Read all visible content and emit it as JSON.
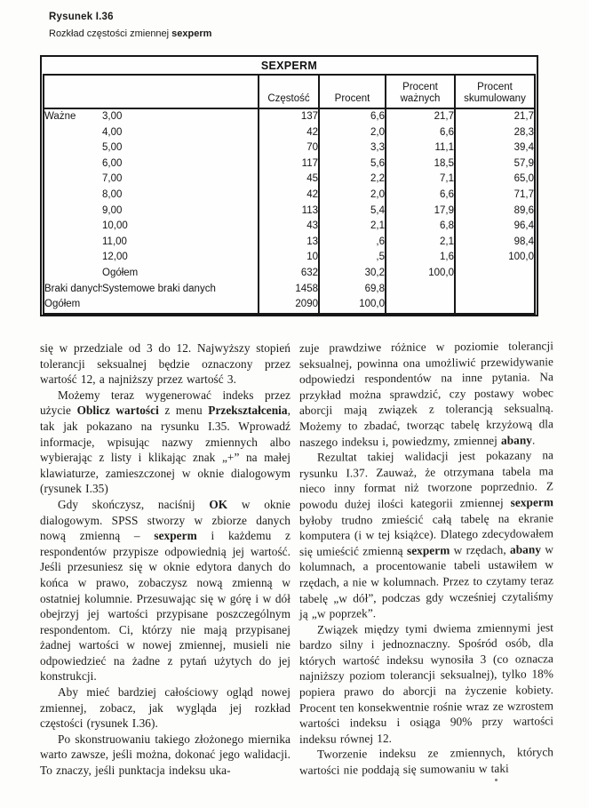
{
  "figure": {
    "label": "Rysunek I.36",
    "caption_text": "Rozkład częstości zmiennej ",
    "caption_var": "sexperm"
  },
  "table": {
    "title": "SEXPERM",
    "col_headers": [
      "Częstość",
      "Procent",
      "Procent\nważnych",
      "Procent\nskumulowany"
    ],
    "rows": [
      [
        "Ważne",
        "3,00",
        "137",
        "6,6",
        "21,7",
        "21,7"
      ],
      [
        "",
        "4,00",
        "42",
        "2,0",
        "6,6",
        "28,3"
      ],
      [
        "",
        "5,00",
        "70",
        "3,3",
        "11,1",
        "39,4"
      ],
      [
        "",
        "6,00",
        "117",
        "5,6",
        "18,5",
        "57,9"
      ],
      [
        "",
        "7,00",
        "45",
        "2,2",
        "7,1",
        "65,0"
      ],
      [
        "",
        "8,00",
        "42",
        "2,0",
        "6,6",
        "71,7"
      ],
      [
        "",
        "9,00",
        "113",
        "5,4",
        "17,9",
        "89,6"
      ],
      [
        "",
        "10,00",
        "43",
        "2,1",
        "6,8",
        "96,4"
      ],
      [
        "",
        "11,00",
        "13",
        ",6",
        "2,1",
        "98,4"
      ],
      [
        "",
        "12,00",
        "10",
        ",5",
        "1,6",
        "100,0"
      ],
      [
        "",
        "Ogółem",
        "632",
        "30,2",
        "100,0",
        ""
      ],
      [
        "Braki danych",
        "Systemowe braki danych",
        "1458",
        "69,8",
        "",
        ""
      ],
      [
        "Ogółem",
        "",
        "2090",
        "100,0",
        "",
        ""
      ]
    ]
  },
  "left_column": {
    "paragraphs": [
      {
        "indent": false,
        "runs": [
          {
            "t": "się w przedziale od 3 do 12. Najwyższy stopień tolerancji seksualnej będzie oznaczony przez wartość 12, a najniższy przez wartość 3."
          }
        ]
      },
      {
        "indent": true,
        "runs": [
          {
            "t": "Możemy teraz wygenerować indeks przez użycie "
          },
          {
            "t": "Oblicz wartości",
            "b": true
          },
          {
            "t": " z menu "
          },
          {
            "t": "Przekształcenia",
            "b": true
          },
          {
            "t": ", tak jak pokazano na rysunku I.35. Wprowadź informacje, wpisując nazwy zmiennych albo wybierając z listy i klikając znak „+” na małej klawiaturze, zamieszczonej w oknie dialogowym (rysunek I.35)"
          }
        ]
      },
      {
        "indent": true,
        "runs": [
          {
            "t": "Gdy skończysz, naciśnij "
          },
          {
            "t": "OK",
            "b": true
          },
          {
            "t": " w oknie dialogowym. SPSS stworzy w zbiorze danych nową zmienną – "
          },
          {
            "t": "sexperm",
            "b": true
          },
          {
            "t": " i każdemu z respondentów przypisze odpowiednią jej wartość. Jeśli przesuniesz się w oknie edytora danych do końca w prawo, zobaczysz nową zmienną w ostatniej kolumnie. Przesuwając się w górę i w dół obejrzyj jej wartości przypisane poszczególnym respondentom. Ci, którzy nie mają przypisanej żadnej wartości w nowej zmiennej, musieli nie odpowiedzieć na żadne z pytań użytych do jej konstrukcji."
          }
        ]
      },
      {
        "indent": true,
        "runs": [
          {
            "t": "Aby mieć bardziej całościowy ogląd nowej zmiennej, zobacz, jak wygląda jej rozkład częstości (rysunek I.36)."
          }
        ]
      },
      {
        "indent": true,
        "runs": [
          {
            "t": "Po skonstruowaniu takiego złożonego miernika warto zawsze, jeśli można, dokonać jego walidacji. To znaczy, jeśli punktacja indeksu uka-"
          }
        ]
      }
    ]
  },
  "right_column": {
    "paragraphs": [
      {
        "indent": false,
        "runs": [
          {
            "t": "zuje prawdziwe różnice w poziomie tolerancji seksualnej, powinna ona umożliwić przewidywanie odpowiedzi respondentów na inne pytania. Na przykład można sprawdzić, czy postawy wobec aborcji mają związek z tolerancją seksualną. Możemy to zbadać, tworząc tabelę krzyżową dla naszego indeksu i, powiedzmy, zmiennej "
          },
          {
            "t": "abany",
            "b": true
          },
          {
            "t": "."
          }
        ]
      },
      {
        "indent": true,
        "runs": [
          {
            "t": "Rezultat takiej walidacji jest pokazany na rysunku I.37. Zauważ, że otrzymana tabela ma nieco inny format niż tworzone poprzednio. Z powodu dużej ilości kategorii zmiennej "
          },
          {
            "t": "sexperm",
            "b": true
          },
          {
            "t": " byłoby trudno zmieścić całą tabelę na ekranie komputera (i w tej książce). Dlatego zdecydowałem się umieścić zmienną "
          },
          {
            "t": "sexperm",
            "b": true
          },
          {
            "t": " w rzędach, "
          },
          {
            "t": "abany",
            "b": true
          },
          {
            "t": " w kolumnach, a procentowanie tabeli ustawiłem w rzędach, a nie w kolumnach. Przez to czytamy teraz tabelę „w dół”, podczas gdy wcześniej czytaliśmy ją „w poprzek”."
          }
        ]
      },
      {
        "indent": true,
        "runs": [
          {
            "t": "Związek między tymi dwiema zmiennymi jest bardzo silny i jednoznaczny. Spośród osób, dla których wartość indeksu wynosiła 3 (co oznacza najniższy poziom tolerancji seksualnej), tylko 18% popiera prawo do aborcji na życzenie kobiety. Procent ten konsekwentnie rośnie wraz ze wzrostem wartości indeksu i osiąga 90% przy wartości indeksu równej 12."
          }
        ]
      },
      {
        "indent": true,
        "runs": [
          {
            "t": "Tworzenie indeksu ze zmiennych, których wartości nie poddają się sumowaniu w taki"
          }
        ]
      }
    ]
  }
}
